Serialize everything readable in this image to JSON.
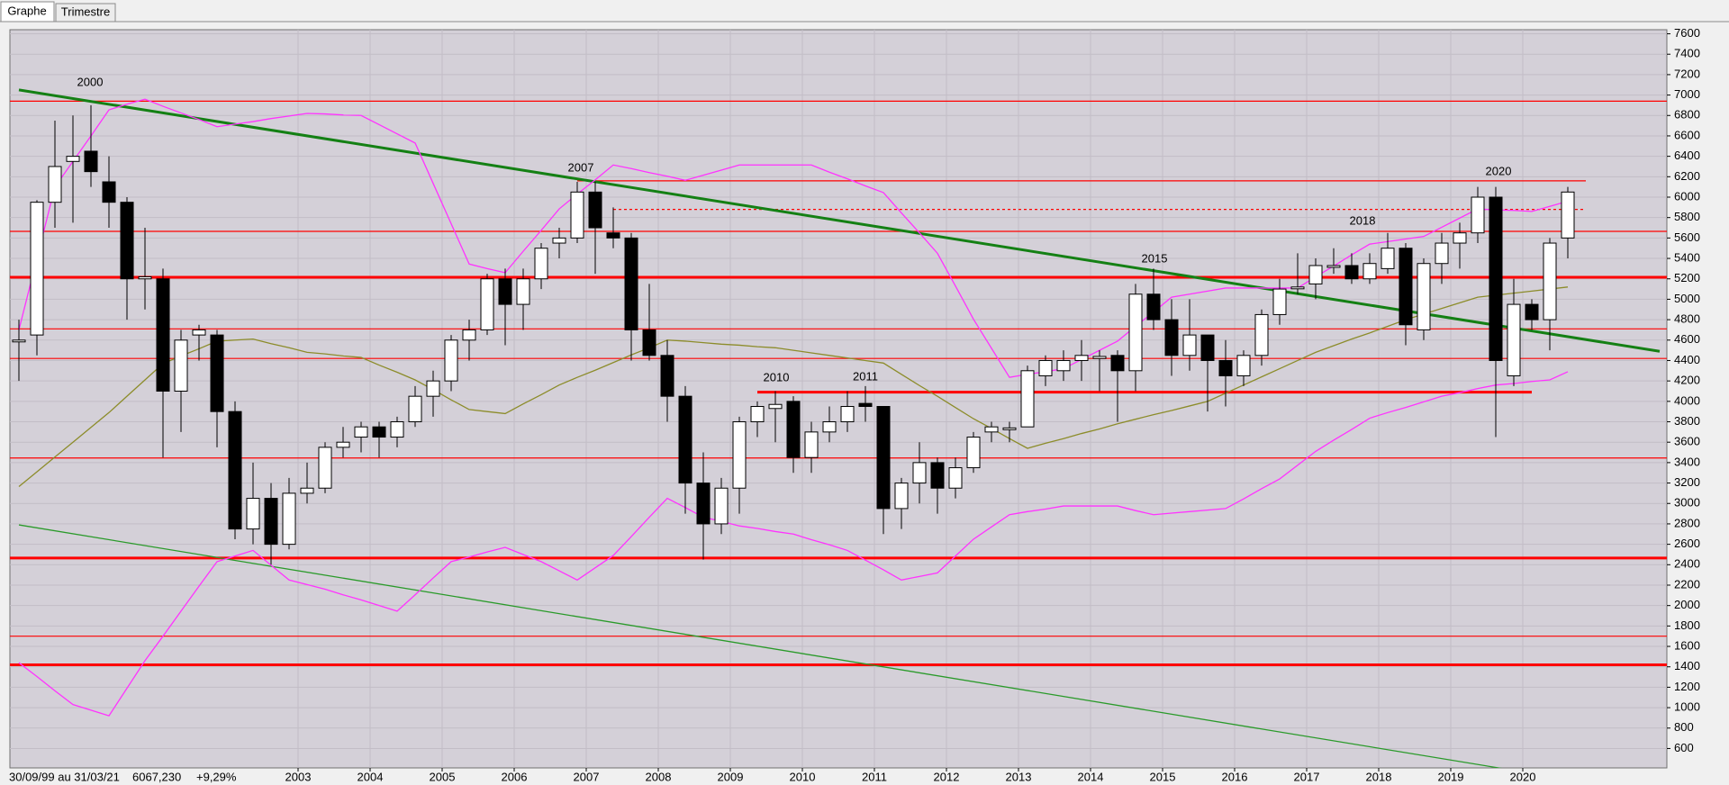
{
  "tabs": [
    "Graphe",
    "Trimestre"
  ],
  "status": {
    "range": "30/09/99 au 31/03/21",
    "last": "6067,230",
    "change": "+9,29%"
  },
  "chart_data": {
    "type": "candlestick",
    "categories": [
      null,
      null,
      null,
      null,
      null,
      null,
      null,
      null,
      null,
      null,
      null,
      null,
      null,
      null,
      null,
      "2003",
      null,
      null,
      null,
      "2004",
      null,
      null,
      null,
      "2005",
      null,
      null,
      null,
      "2006",
      null,
      null,
      null,
      "2007",
      null,
      null,
      null,
      "2008",
      null,
      null,
      null,
      "2009",
      null,
      null,
      null,
      "2010",
      null,
      null,
      null,
      "2011",
      null,
      null,
      null,
      "2012",
      null,
      null,
      null,
      "2013",
      null,
      null,
      null,
      "2014",
      null,
      null,
      null,
      "2015",
      null,
      null,
      null,
      "2016",
      null,
      null,
      null,
      "2017",
      null,
      null,
      null,
      "2018",
      null,
      null,
      null,
      "2019",
      null,
      null,
      null,
      "2020",
      null,
      null,
      null
    ],
    "open": [
      4600,
      4650,
      5950,
      6350,
      6450,
      6150,
      5950,
      5200,
      5200,
      4100,
      4650,
      4650,
      3900,
      2750,
      3050,
      2600,
      3100,
      3150,
      3550,
      3650,
      3750,
      3650,
      3800,
      4050,
      4200,
      4600,
      4700,
      5200,
      4950,
      5200,
      5550,
      5600,
      6050,
      5650,
      5600,
      4700,
      4450,
      4050,
      3200,
      2800,
      3150,
      3800,
      3930,
      4000,
      3450,
      3700,
      3800,
      3980,
      3950,
      2950,
      3200,
      3400,
      3150,
      3350,
      3700,
      3730,
      3750,
      4250,
      4300,
      4400,
      4420,
      4450,
      4300,
      5050,
      4800,
      4450,
      4650,
      4400,
      4250,
      4450,
      4850,
      5110,
      5150,
      5320,
      5330,
      5200,
      5300,
      5500,
      4700,
      5350,
      5550,
      5650,
      6000,
      4250,
      4950,
      4800,
      5600
    ],
    "high": [
      4800,
      5970,
      6750,
      6800,
      6900,
      6400,
      6000,
      5700,
      5300,
      4700,
      4750,
      4700,
      4000,
      3400,
      3200,
      3250,
      3400,
      3600,
      3750,
      3800,
      3800,
      3850,
      4150,
      4300,
      4650,
      4800,
      5250,
      5300,
      5300,
      5550,
      5700,
      6150,
      6150,
      5900,
      5650,
      5150,
      4600,
      4150,
      3500,
      3250,
      3850,
      4000,
      4100,
      4050,
      3800,
      3950,
      4100,
      4150,
      3950,
      3250,
      3600,
      3450,
      3450,
      3700,
      3800,
      3800,
      4350,
      4450,
      4500,
      4600,
      4500,
      4500,
      5150,
      5300,
      5000,
      5000,
      4650,
      4600,
      4500,
      4900,
      5200,
      5450,
      5400,
      5500,
      5450,
      5450,
      5650,
      5550,
      5400,
      5650,
      5750,
      6100,
      6100,
      5200,
      5000,
      5600,
      6100
    ],
    "low": [
      4200,
      4450,
      5700,
      5750,
      6100,
      5700,
      4800,
      4900,
      3450,
      3700,
      4400,
      3550,
      2650,
      2600,
      2400,
      2550,
      3000,
      3100,
      3450,
      3500,
      3450,
      3550,
      3750,
      3850,
      4100,
      4400,
      4650,
      4550,
      4700,
      5100,
      5400,
      5550,
      5250,
      5500,
      4400,
      4400,
      3800,
      2900,
      2450,
      2700,
      2900,
      3650,
      3600,
      3300,
      3300,
      3600,
      3700,
      3800,
      2700,
      2750,
      3000,
      2900,
      3050,
      3300,
      3600,
      3600,
      3750,
      4150,
      4200,
      4200,
      4100,
      3800,
      4100,
      4700,
      4250,
      4300,
      3900,
      3950,
      4150,
      4350,
      4750,
      5050,
      5000,
      5250,
      5150,
      5150,
      5250,
      4550,
      4600,
      5150,
      5300,
      5550,
      3650,
      4150,
      4700,
      4500,
      5400
    ],
    "close": [
      4600,
      5950,
      6300,
      6400,
      6250,
      5950,
      5200,
      5220,
      4100,
      4600,
      4700,
      3900,
      2750,
      3050,
      2600,
      3100,
      3150,
      3550,
      3600,
      3750,
      3650,
      3800,
      4050,
      4200,
      4600,
      4700,
      5200,
      4950,
      5200,
      5500,
      5600,
      6050,
      5700,
      5600,
      4700,
      4450,
      4050,
      3200,
      2800,
      3150,
      3800,
      3950,
      3970,
      3450,
      3700,
      3800,
      3950,
      3950,
      2950,
      3200,
      3400,
      3150,
      3350,
      3650,
      3750,
      3740,
      4300,
      4400,
      4400,
      4450,
      4440,
      4300,
      5050,
      4800,
      4450,
      4650,
      4400,
      4250,
      4450,
      4850,
      5100,
      5120,
      5330,
      5330,
      5200,
      5350,
      5500,
      4750,
      5350,
      5550,
      5650,
      6000,
      4400,
      4950,
      4800,
      5550,
      6050
    ],
    "lines": [
      {
        "color": "#ff33ff",
        "values": [
          4700,
          5400,
          6100,
          6350,
          6600,
          6855,
          6910,
          6960,
          6890,
          6825,
          6760,
          6690,
          6715,
          6740,
          6770,
          6795,
          6820,
          6815,
          6805,
          6800,
          6710,
          6620,
          6530,
          6135,
          5740,
          5345,
          5300,
          5260,
          5470,
          5675,
          5885,
          6030,
          6170,
          6315,
          6280,
          6240,
          6205,
          6165,
          6215,
          6265,
          6315,
          6315,
          6315,
          6315,
          6315,
          6245,
          6180,
          6110,
          6045,
          5845,
          5650,
          5450,
          5130,
          4805,
          4520,
          4235,
          4265,
          4290,
          4320,
          4410,
          4500,
          4590,
          4735,
          4875,
          5020,
          5050,
          5080,
          5110,
          5110,
          5110,
          5110,
          5110,
          5220,
          5325,
          5435,
          5540,
          5565,
          5590,
          5615,
          5705,
          5795,
          5885,
          5875,
          5870,
          5860,
          5910,
          5960
        ]
      },
      {
        "color": "#ff33ff",
        "values": [
          1440,
          1305,
          1165,
          1030,
          975,
          920,
          1190,
          1460,
          1700,
          1945,
          2190,
          2430,
          2485,
          2540,
          2395,
          2250,
          2205,
          2160,
          2105,
          2055,
          2000,
          1945,
          2105,
          2270,
          2430,
          2475,
          2525,
          2570,
          2500,
          2430,
          2340,
          2250,
          2370,
          2490,
          2675,
          2865,
          3050,
          2960,
          2865,
          2825,
          2780,
          2755,
          2725,
          2700,
          2645,
          2595,
          2540,
          2445,
          2350,
          2250,
          2285,
          2320,
          2485,
          2650,
          2770,
          2890,
          2920,
          2945,
          2975,
          2975,
          2975,
          2975,
          2930,
          2890,
          2905,
          2920,
          2935,
          2950,
          3045,
          3145,
          3240,
          3375,
          3510,
          3620,
          3725,
          3835,
          3890,
          3940,
          3995,
          4050,
          4085,
          4125,
          4160,
          4175,
          4195,
          4210,
          4290
        ]
      },
      {
        "color": "#8c8c2a",
        "values": [
          3165,
          3310,
          3455,
          3600,
          3745,
          3890,
          4050,
          4210,
          4370,
          4445,
          4515,
          4590,
          4600,
          4610,
          4565,
          4525,
          4480,
          4465,
          4445,
          4430,
          4355,
          4285,
          4210,
          4115,
          4015,
          3920,
          3900,
          3880,
          3975,
          4065,
          4160,
          4235,
          4305,
          4380,
          4455,
          4525,
          4600,
          4590,
          4575,
          4560,
          4550,
          4535,
          4525,
          4500,
          4475,
          4450,
          4425,
          4400,
          4375,
          4265,
          4155,
          4050,
          3940,
          3830,
          3735,
          3635,
          3540,
          3590,
          3635,
          3685,
          3730,
          3780,
          3825,
          3870,
          3910,
          3955,
          4000,
          4080,
          4160,
          4240,
          4320,
          4400,
          4480,
          4545,
          4610,
          4670,
          4735,
          4800,
          4855,
          4910,
          4965,
          5020,
          5040,
          5060,
          5080,
          5100,
          5120
        ]
      }
    ],
    "hlines": [
      {
        "value": 6940,
        "color": "#ff0000"
      },
      {
        "value": 6160,
        "color": "#ff0000",
        "from": 31,
        "to": 87
      },
      {
        "value": 5880,
        "color": "#ff0000",
        "dashed": true,
        "from": 33,
        "to": 87
      },
      {
        "value": 5665,
        "color": "#ff0000"
      },
      {
        "value": 5215,
        "color": "#ff0000",
        "thick": true
      },
      {
        "value": 4710,
        "color": "#ff0000"
      },
      {
        "value": 4420,
        "color": "#ff0000"
      },
      {
        "value": 4090,
        "color": "#ff0000",
        "thick": true,
        "from": 41,
        "to": 84
      },
      {
        "value": 3445,
        "color": "#ff0000"
      },
      {
        "value": 2465,
        "color": "#ff0000",
        "thick": true
      },
      {
        "value": 1700,
        "color": "#ff0000"
      },
      {
        "value": 1420,
        "color": "#ff0000",
        "thick": true
      }
    ],
    "trendlines": [
      {
        "color": "#148014",
        "thick": true,
        "from": [
          0,
          7050
        ],
        "to": [
          91.1,
          4490
        ]
      },
      {
        "color": "#2a9a2a",
        "from": [
          0,
          2790
        ],
        "to": [
          82.5,
          400
        ]
      }
    ],
    "annotations": [
      "2000",
      "2007",
      "2010",
      "2011",
      "2015",
      "2018",
      "2020"
    ],
    "ylim": [
      410,
      7640
    ],
    "yticks": [
      600,
      800,
      1000,
      1200,
      1400,
      1600,
      1800,
      2000,
      2200,
      2400,
      2600,
      2800,
      3000,
      3200,
      3400,
      3600,
      3800,
      4000,
      4200,
      4400,
      4600,
      4800,
      5000,
      5200,
      5400,
      5600,
      5800,
      6000,
      6200,
      6400,
      6600,
      6800,
      7000,
      7200,
      7400,
      7600
    ],
    "grid": true,
    "up_color": "#ffffff",
    "down_color": "#000000"
  }
}
